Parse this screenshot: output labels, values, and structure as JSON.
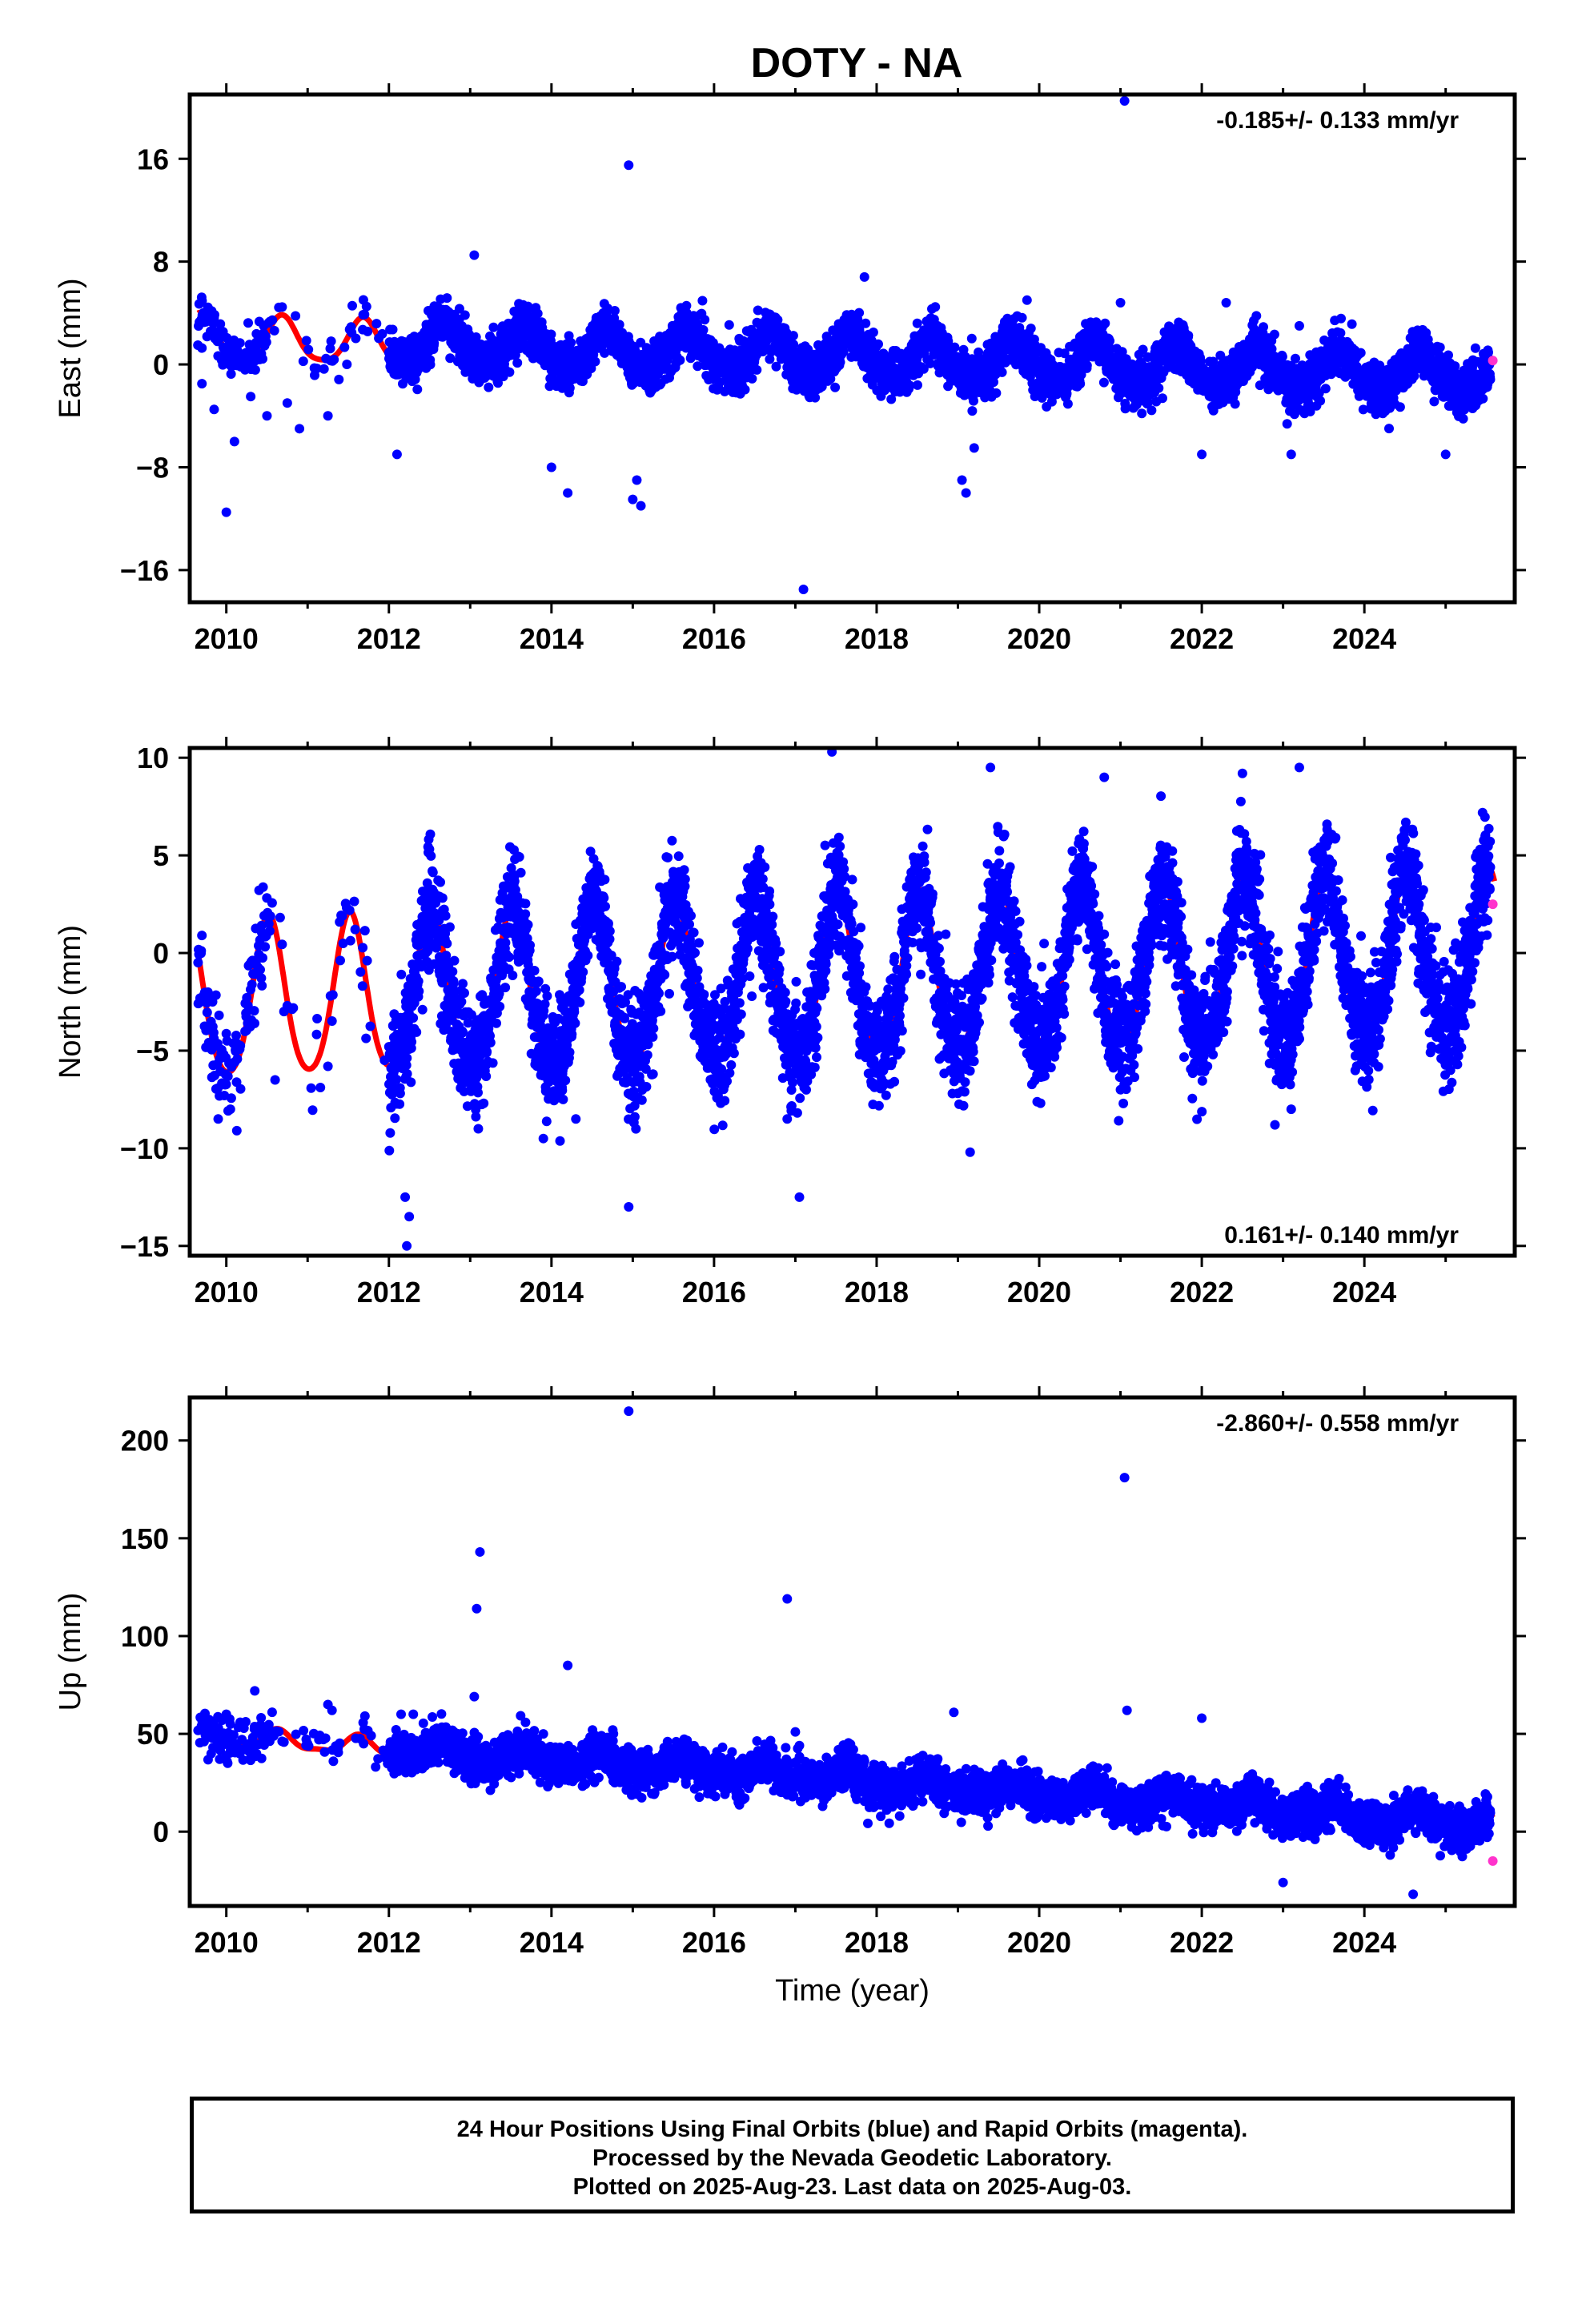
{
  "title": "DOTY - NA",
  "footer": {
    "line1": "24 Hour Positions Using Final Orbits (blue) and Rapid Orbits (magenta).",
    "line2": "Processed by the Nevada Geodetic Laboratory.",
    "line3": "Plotted on 2025-Aug-23. Last data on 2025-Aug-03."
  },
  "chart_data": [
    {
      "type": "scatter",
      "ylabel": "East (mm)",
      "xlabel": "",
      "xlim": [
        2009.55,
        2025.85
      ],
      "ylim": [
        -18.5,
        21
      ],
      "xticks": [
        2010,
        2012,
        2014,
        2016,
        2018,
        2020,
        2022,
        2024
      ],
      "yticks": [
        -16,
        -8,
        0,
        8,
        16
      ],
      "ytick_labels": [
        "−16",
        "−8",
        "0",
        "8",
        "16"
      ],
      "rate_text": "-0.185+/- 0.133 mm/yr",
      "rate_position": "top-right",
      "colors": {
        "final": "#0000ff",
        "rapid": "#ff33cc",
        "model": "#ff0000"
      },
      "model": {
        "trend": -0.185,
        "offset": 0.6,
        "annual_amp": 1.5,
        "annual_phase_day": 250,
        "semiannual_amp": 0.3,
        "gap_fill_amp": 1.7,
        "noise": 0.9
      },
      "rapid_points": [
        [
          2025.58,
          0.3
        ]
      ],
      "outliers": [
        [
          2009.7,
          -1.5
        ],
        [
          2009.85,
          -3.5
        ],
        [
          2010.0,
          -11.5
        ],
        [
          2010.1,
          -6
        ],
        [
          2010.3,
          -2.5
        ],
        [
          2010.5,
          -4
        ],
        [
          2010.75,
          -3
        ],
        [
          2010.9,
          -5
        ],
        [
          2011.25,
          -4
        ],
        [
          2012.1,
          -7
        ],
        [
          2013.05,
          8.5
        ],
        [
          2014.0,
          -8
        ],
        [
          2014.2,
          -10
        ],
        [
          2014.95,
          15.5
        ],
        [
          2015.0,
          -10.5
        ],
        [
          2015.05,
          -9
        ],
        [
          2015.1,
          -11
        ],
        [
          2017.1,
          -17.5
        ],
        [
          2017.85,
          6.8
        ],
        [
          2018.5,
          3.2
        ],
        [
          2019.05,
          -9
        ],
        [
          2019.1,
          -10
        ],
        [
          2019.2,
          -6.5
        ],
        [
          2019.85,
          5
        ],
        [
          2021.05,
          20.5
        ],
        [
          2021.0,
          4.8
        ],
        [
          2022.0,
          -7
        ],
        [
          2022.3,
          4.8
        ],
        [
          2023.1,
          -7
        ],
        [
          2023.2,
          3
        ],
        [
          2025.0,
          -7
        ]
      ]
    },
    {
      "type": "scatter",
      "ylabel": "North (mm)",
      "xlabel": "",
      "xlim": [
        2009.55,
        2025.85
      ],
      "ylim": [
        -15.5,
        10.5
      ],
      "xticks": [
        2010,
        2012,
        2014,
        2016,
        2018,
        2020,
        2022,
        2024
      ],
      "yticks": [
        -15,
        -10,
        -5,
        0,
        5,
        10
      ],
      "ytick_labels": [
        "−15",
        "−10",
        "−5",
        "0",
        "5",
        "10"
      ],
      "rate_text": "0.161+/- 0.140 mm/yr",
      "rate_position": "bottom-right",
      "colors": {
        "final": "#0000ff",
        "rapid": "#ff33cc",
        "model": "#ff0000"
      },
      "model": {
        "trend": 0.161,
        "offset": -1.4,
        "annual_amp": 4.0,
        "annual_phase_day": 190,
        "semiannual_amp": 0.5,
        "gap_fill_amp": 4.0,
        "noise": 1.4
      },
      "rapid_points": [
        [
          2025.58,
          2.5
        ]
      ],
      "outliers": [
        [
          2009.9,
          -8.5
        ],
        [
          2010.05,
          -8
        ],
        [
          2010.6,
          -6.5
        ],
        [
          2011.25,
          -5.8
        ],
        [
          2012.2,
          -12.5
        ],
        [
          2012.25,
          -13.5
        ],
        [
          2012.22,
          -15
        ],
        [
          2013.1,
          -9
        ],
        [
          2013.9,
          -9.5
        ],
        [
          2014.3,
          -8.5
        ],
        [
          2014.95,
          -13
        ],
        [
          2015.0,
          -8.5
        ],
        [
          2016.9,
          -8.5
        ],
        [
          2017.05,
          -12.5
        ],
        [
          2017.45,
          10.3
        ],
        [
          2019.15,
          -10.2
        ],
        [
          2019.4,
          9.5
        ],
        [
          2020.8,
          9
        ],
        [
          2022.9,
          -8.8
        ],
        [
          2022.5,
          9.2
        ],
        [
          2023.2,
          9.5
        ],
        [
          2023.1,
          -8
        ],
        [
          2021.0,
          -7
        ]
      ]
    },
    {
      "type": "scatter",
      "ylabel": "Up (mm)",
      "xlabel": "Time (year)",
      "xlim": [
        2009.55,
        2025.85
      ],
      "ylim": [
        -38,
        222
      ],
      "xticks": [
        2010,
        2012,
        2014,
        2016,
        2018,
        2020,
        2022,
        2024
      ],
      "yticks": [
        0,
        50,
        100,
        150,
        200
      ],
      "ytick_labels": [
        "0",
        "50",
        "100",
        "150",
        "200"
      ],
      "rate_text": "-2.860+/- 0.558 mm/yr",
      "rate_position": "top-right",
      "colors": {
        "final": "#0000ff",
        "rapid": "#ff33cc",
        "model": "#ff0000"
      },
      "model": {
        "trend": -2.86,
        "offset": 27,
        "annual_amp": 4.0,
        "annual_phase_day": 230,
        "semiannual_amp": 1.5,
        "gap_fill_amp": 4.5,
        "noise": 5.0
      },
      "rapid_points": [
        [
          2025.58,
          -15
        ]
      ],
      "outliers": [
        [
          2009.95,
          57
        ],
        [
          2010.0,
          60
        ],
        [
          2010.05,
          55
        ],
        [
          2010.35,
          72
        ],
        [
          2011.25,
          65
        ],
        [
          2011.3,
          62
        ],
        [
          2012.15,
          60
        ],
        [
          2012.3,
          60
        ],
        [
          2013.05,
          69
        ],
        [
          2013.08,
          114
        ],
        [
          2013.12,
          143
        ],
        [
          2013.9,
          50
        ],
        [
          2014.2,
          85
        ],
        [
          2014.95,
          215
        ],
        [
          2015.0,
          40
        ],
        [
          2016.9,
          119
        ],
        [
          2017.0,
          51
        ],
        [
          2017.05,
          44
        ],
        [
          2017.85,
          36
        ],
        [
          2018.95,
          61
        ],
        [
          2018.85,
          32
        ],
        [
          2020.8,
          28
        ],
        [
          2021.05,
          181
        ],
        [
          2021.08,
          62
        ],
        [
          2022.0,
          58
        ],
        [
          2024.6,
          -32
        ],
        [
          2023.0,
          -26
        ]
      ]
    }
  ]
}
